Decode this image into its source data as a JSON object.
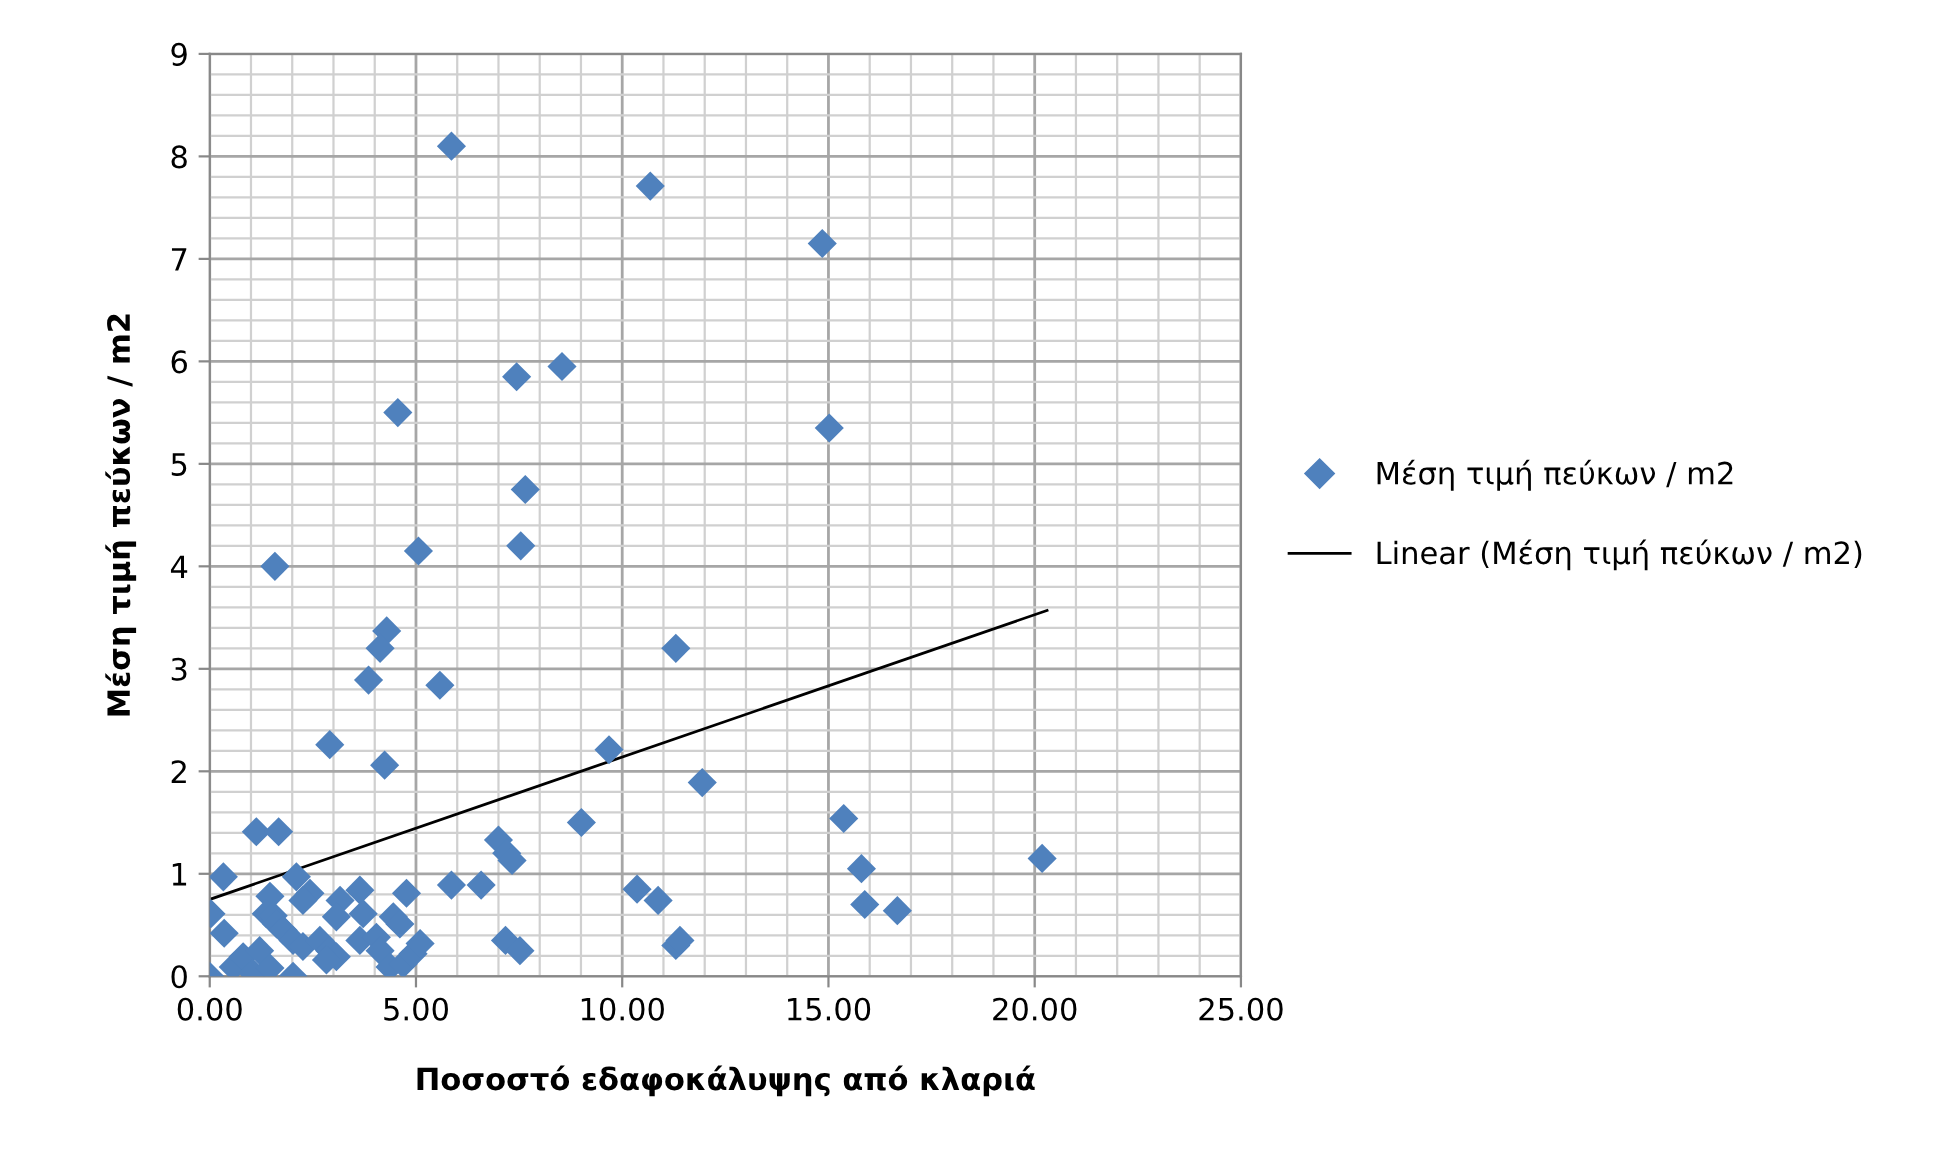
{
  "chart_data": {
    "type": "scatter",
    "xlabel": "Ποσοστό εδαφοκάλυψης από κλαριά",
    "ylabel": "Μέση τιμή πεύκων / m2",
    "series": [
      {
        "name": "Μέση τιμή πεύκων / m2",
        "color": "#4f81bd",
        "marker": "diamond",
        "x": [
          0,
          0.03,
          0.33,
          0.35,
          1.13,
          1.67,
          0.57,
          0.81,
          1.05,
          1.21,
          1.46,
          2.02,
          1.46,
          1.37,
          1.54,
          1.62,
          1.78,
          2.1,
          2.43,
          2.26,
          2.02,
          2.26,
          2.67,
          2.91,
          3.07,
          2.83,
          2.91,
          3.16,
          3.07,
          3.64,
          3.72,
          3.64,
          4.04,
          4.13,
          3.85,
          4.24,
          4.37,
          4.45,
          4.61,
          4.77,
          4.69,
          4.93,
          5.1,
          5.58,
          5.86,
          6.58,
          7.0,
          7.2,
          7.33,
          7.17,
          7.52,
          9.01,
          9.68,
          11.94,
          10.36,
          10.87,
          11.3,
          11.4,
          15.37,
          15.8,
          15.88,
          16.67,
          20.18,
          5.86,
          10.68,
          8.54,
          7.44,
          4.56,
          7.65,
          7.54,
          5.06,
          1.58,
          4.29,
          4.13,
          11.3,
          14.85,
          15.02
        ],
        "values": [
          0,
          0.61,
          0.97,
          0.42,
          1.41,
          1.41,
          0.09,
          0.19,
          0.03,
          0.25,
          0.08,
          0.0,
          0.78,
          0.61,
          0.59,
          0.51,
          0.45,
          0.97,
          0.81,
          0.74,
          0.35,
          0.29,
          0.35,
          0.25,
          0.19,
          0.16,
          2.26,
          0.74,
          0.58,
          0.84,
          0.61,
          0.35,
          0.38,
          0.25,
          2.89,
          2.06,
          0.09,
          0.58,
          0.51,
          0.81,
          0.12,
          0.22,
          0.32,
          2.84,
          0.89,
          0.89,
          1.33,
          1.2,
          1.13,
          0.35,
          0.25,
          1.5,
          2.21,
          1.89,
          0.85,
          0.74,
          0.3,
          0.35,
          1.54,
          1.05,
          0.7,
          0.64,
          1.15,
          8.1,
          7.71,
          5.95,
          5.85,
          5.5,
          4.75,
          4.2,
          4.15,
          4.0,
          3.37,
          3.2,
          3.2,
          7.15,
          5.35
        ]
      },
      {
        "name": "Linear (Μέση τιμή πεύκων / m2)",
        "type": "line",
        "color": "#000000",
        "marker": "none",
        "line_style": "solid",
        "x": [
          0,
          20.3
        ],
        "values": [
          0.75,
          3.57
        ]
      }
    ],
    "xlim": [
      0,
      25
    ],
    "xticks": [
      {
        "value": 0,
        "label": "0.00"
      },
      {
        "value": 5,
        "label": "5.00"
      },
      {
        "value": 10,
        "label": "10.00"
      },
      {
        "value": 15,
        "label": "15.00"
      },
      {
        "value": 20,
        "label": "20.00"
      },
      {
        "value": 25,
        "label": "25.00"
      }
    ],
    "ylim": [
      0,
      9
    ],
    "yticks": [
      0,
      1,
      2,
      3,
      4,
      5,
      6,
      7,
      8,
      9
    ],
    "grid": true,
    "legend": "right"
  }
}
